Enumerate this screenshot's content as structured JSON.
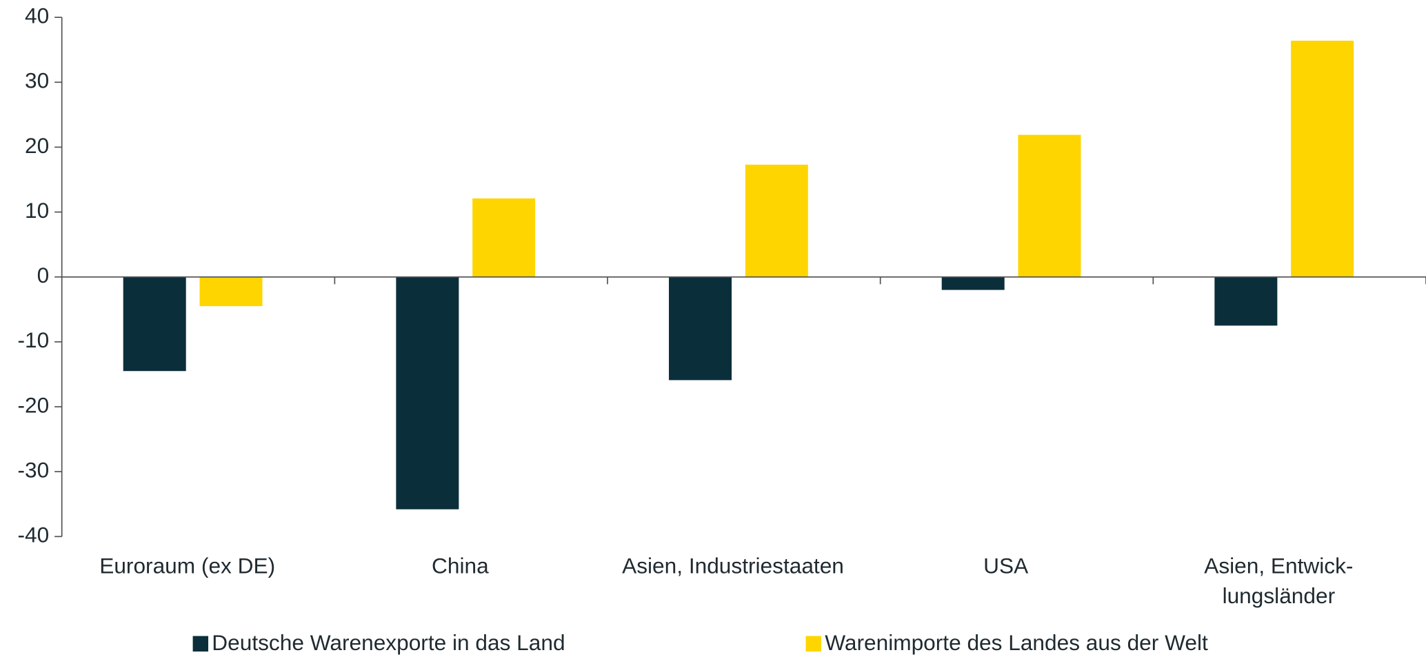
{
  "chart_data": {
    "type": "bar",
    "categories": [
      "Euroraum (ex DE)",
      "China",
      "Asien, Industriestaaten",
      "USA",
      "Asien, Entwick-\nlungsländer"
    ],
    "series": [
      {
        "name": "Deutsche Warenexporte in das Land",
        "color": "#0b2e3b",
        "values": [
          -14.5,
          -35.8,
          -15.9,
          -2.0,
          -7.5
        ]
      },
      {
        "name": "Warenimporte des Landes aus der Welt",
        "color": "#ffd500",
        "values": [
          -4.5,
          12.1,
          17.3,
          21.9,
          36.4
        ]
      }
    ],
    "ylim": [
      -40,
      40
    ],
    "yticks": [
      -40,
      -30,
      -20,
      -10,
      0,
      10,
      20,
      30,
      40
    ],
    "grid": false,
    "legend": "bottom"
  }
}
